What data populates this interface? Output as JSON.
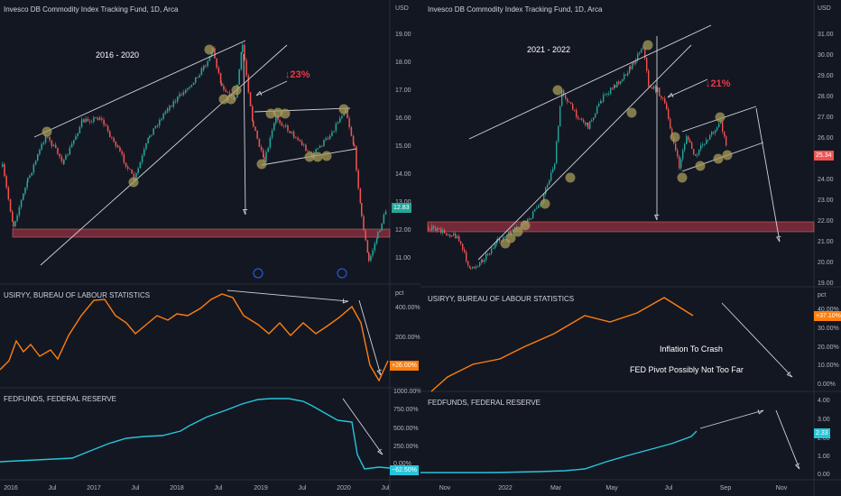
{
  "left_chart": {
    "title": "Invesco DB Commodity Index Tracking Fund, 1D, Arca",
    "currency": "USD",
    "period_label": "2016 - 2020",
    "drop_label": "23%",
    "price_ticks": [
      "19.00",
      "18.00",
      "17.00",
      "16.00",
      "15.00",
      "14.00",
      "13.00",
      "12.00",
      "11.00"
    ],
    "last_price": "12.83",
    "indicator1": {
      "title": "USIRYY, BUREAU OF LABOUR STATISTICS",
      "unit": "pct",
      "ticks": [
        "400.00%",
        "200.00%"
      ],
      "last": "+26.00%"
    },
    "indicator2": {
      "title": "FEDFUNDS, FEDERAL RESERVE",
      "ticks": [
        "1000.00%",
        "750.00%",
        "500.00%",
        "250.00%",
        "0.00%"
      ],
      "last": "−62.50%"
    },
    "dates": [
      "2016",
      "Jul",
      "2017",
      "Jul",
      "2018",
      "Jul",
      "2019",
      "Jul",
      "2020",
      "Jul"
    ]
  },
  "right_chart": {
    "title": "Invesco DB Commodity Index Tracking Fund, 1D, Arca",
    "currency": "USD",
    "period_label": "2021 - 2022",
    "drop_label": "21%",
    "price_ticks": [
      "31.00",
      "30.00",
      "29.00",
      "28.00",
      "27.00",
      "26.00",
      "25.00",
      "24.00",
      "23.00",
      "22.00",
      "21.00",
      "20.00",
      "19.00"
    ],
    "last_price": "25.34",
    "indicator1": {
      "title": "USIRYY, BUREAU OF LABOUR STATISTICS",
      "unit": "pct",
      "ticks": [
        "40.00%",
        "30.00%",
        "20.00%",
        "10.00%",
        "0.00%"
      ],
      "last": "+37.10%"
    },
    "annotation_line1": "Inflation To Crash",
    "annotation_line2": "FED Pivot Possibly Not Too Far",
    "indicator2": {
      "title": "FEDFUNDS, FEDERAL RESERVE",
      "ticks": [
        "4.00",
        "3.00",
        "2.00",
        "1.00",
        "0.00"
      ],
      "last": "2.33"
    },
    "dates": [
      "Nov",
      "2022",
      "Mar",
      "May",
      "Jul",
      "Sep",
      "Nov"
    ]
  },
  "colors": {
    "background": "#131722",
    "up": "#26a69a",
    "down": "#ef5350",
    "orange": "#ff7f0e",
    "cyan": "#26c6da",
    "zone": "#b2374a",
    "marker": "#a89c5a",
    "line": "#d1d4dc",
    "accent_red": "#f23645"
  }
}
